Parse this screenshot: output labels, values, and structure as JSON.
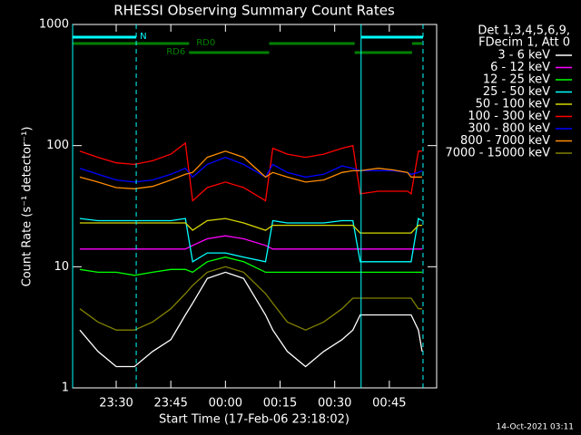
{
  "chart_data": {
    "type": "line",
    "title": "RHESSI Observing Summary Count Rates",
    "xlabel": "Start Time (17-Feb-06 23:18:02)",
    "ylabel": "Count Rate (s⁻¹ detector⁻¹)",
    "footer": "14-Oct-2021 03:11",
    "legend_header": [
      "Det 1,3,4,5,6,9,",
      "FDecim 1, Att 0"
    ],
    "log_y": true,
    "xlim": [
      "23:18:02",
      "00:58"
    ],
    "xticks": [
      "23:30",
      "23:45",
      "00:00",
      "00:15",
      "00:30",
      "00:45"
    ],
    "ylim": [
      1,
      1000
    ],
    "yticks": [
      1,
      10,
      100,
      1000
    ],
    "x": [
      "23:20",
      "23:25",
      "23:30",
      "23:35",
      "23:40",
      "23:45",
      "23:49",
      "23:51",
      "23:55",
      "00:00",
      "00:05",
      "00:11",
      "00:13",
      "00:17",
      "00:22",
      "00:27",
      "00:32",
      "00:35",
      "00:37",
      "00:42",
      "00:46",
      "00:50",
      "00:51",
      "00:53",
      "00:54"
    ],
    "series": [
      {
        "name": "3 - 6 keV",
        "color": "#ffffff",
        "values": [
          3,
          2,
          1.5,
          1.5,
          2,
          2.5,
          4,
          5,
          8,
          9,
          8,
          4,
          3,
          2,
          1.5,
          2,
          2.5,
          3,
          4,
          4,
          4,
          4,
          4,
          3,
          2
        ]
      },
      {
        "name": "6 - 12 keV",
        "color": "#ff00ff",
        "values": [
          14,
          14,
          14,
          14,
          14,
          14,
          14,
          15,
          17,
          18,
          17,
          15,
          14,
          14,
          14,
          14,
          14,
          14,
          14,
          14,
          14,
          14,
          14,
          14,
          14
        ]
      },
      {
        "name": "12 - 25 keV",
        "color": "#00ff00",
        "values": [
          9.5,
          9,
          9,
          8.5,
          9,
          9.5,
          9.5,
          9,
          11,
          12,
          11,
          9,
          9,
          9,
          9,
          9,
          9,
          9,
          9,
          9,
          9,
          9,
          9,
          9,
          9
        ]
      },
      {
        "name": "25 - 50 keV",
        "color": "#00ffff",
        "values": [
          25,
          24,
          24,
          24,
          24,
          24,
          25,
          11,
          13,
          13,
          12,
          11,
          24,
          23,
          23,
          23,
          24,
          24,
          11,
          11,
          11,
          11,
          11,
          25,
          24
        ]
      },
      {
        "name": "50 - 100 keV",
        "color": "#d8d800",
        "values": [
          23,
          23,
          23,
          23,
          23,
          23,
          23,
          20,
          24,
          25,
          23,
          20,
          22,
          22,
          22,
          22,
          22,
          22,
          19,
          19,
          19,
          19,
          19,
          22,
          22
        ]
      },
      {
        "name": "100 - 300 keV",
        "color": "#ff0000",
        "values": [
          90,
          80,
          72,
          70,
          75,
          85,
          105,
          35,
          45,
          50,
          45,
          35,
          95,
          85,
          80,
          85,
          95,
          100,
          40,
          42,
          42,
          42,
          40,
          90,
          90
        ]
      },
      {
        "name": "300 - 800 keV",
        "color": "#0000ff",
        "values": [
          65,
          58,
          52,
          50,
          52,
          58,
          65,
          55,
          70,
          80,
          70,
          55,
          70,
          60,
          55,
          58,
          68,
          65,
          62,
          62,
          62,
          60,
          58,
          60,
          62
        ]
      },
      {
        "name": "800 - 7000 keV",
        "color": "#ff8c00",
        "values": [
          55,
          50,
          45,
          44,
          46,
          52,
          58,
          60,
          80,
          90,
          80,
          55,
          60,
          55,
          50,
          52,
          60,
          62,
          62,
          65,
          63,
          60,
          55,
          55,
          55
        ]
      },
      {
        "name": "7000 - 15000 keV",
        "color": "#808000",
        "values": [
          4.5,
          3.5,
          3,
          3,
          3.5,
          4.5,
          6,
          7,
          9,
          10,
          9,
          6,
          5,
          3.5,
          3,
          3.5,
          4.5,
          5.5,
          5.5,
          5.5,
          5.5,
          5.5,
          5.5,
          4.5,
          4.5
        ]
      }
    ],
    "night": {
      "label": "N",
      "color": "#00ffff",
      "intervals": [
        [
          "23:18:02",
          "23:35:30"
        ],
        [
          "00:37:15",
          "00:54:15"
        ]
      ]
    },
    "rd0": {
      "label": "RD0",
      "color": "#008000",
      "intervals": [
        [
          "23:18:02",
          "23:50"
        ],
        [
          "00:12",
          "00:35:30"
        ],
        [
          "00:51:15",
          "00:54"
        ]
      ]
    },
    "rd6": {
      "label": "RD6",
      "color": "#008000",
      "intervals": [
        [
          "23:50",
          "00:12"
        ],
        [
          "00:35:30",
          "00:51:15"
        ]
      ]
    }
  }
}
